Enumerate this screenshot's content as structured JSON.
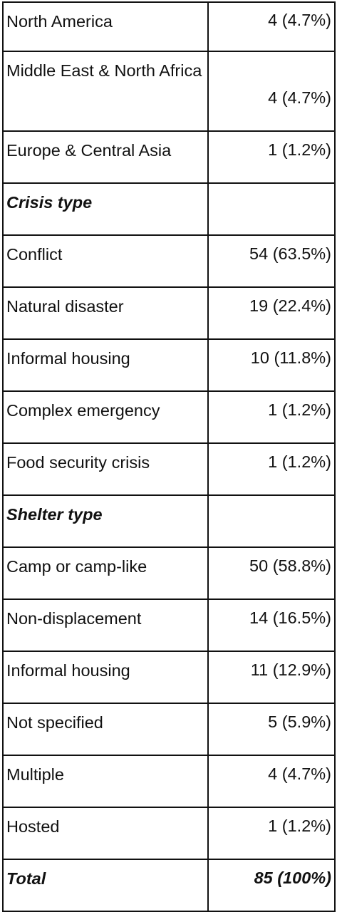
{
  "table": {
    "rows": [
      {
        "label": "North America",
        "value": "4 (4.7%)"
      },
      {
        "label": "Middle East & North Africa",
        "value": "4 (4.7%)"
      },
      {
        "label": "Europe & Central Asia",
        "value": "1 (1.2%)"
      },
      {
        "label": "Crisis type",
        "style": "section"
      },
      {
        "label": "Conflict",
        "value": "54 (63.5%)"
      },
      {
        "label": "Natural disaster",
        "value": "19 (22.4%)"
      },
      {
        "label": "Informal housing",
        "value": "10 (11.8%)"
      },
      {
        "label": "Complex emergency",
        "value": "1 (1.2%)"
      },
      {
        "label": "Food security crisis",
        "value": "1 (1.2%)"
      },
      {
        "label": "Shelter type",
        "style": "section"
      },
      {
        "label": "Camp or camp-like",
        "value": "50 (58.8%)"
      },
      {
        "label": "Non-displacement",
        "value": "14 (16.5%)"
      },
      {
        "label": "Informal housing",
        "value": "11 (12.9%)"
      },
      {
        "label": "Not specified",
        "value": "5 (5.9%)"
      },
      {
        "label": "Multiple",
        "value": "4 (4.7%)"
      },
      {
        "label": "Hosted",
        "value": "1 (1.2%)"
      },
      {
        "label": "Total",
        "value": "85 (100%)",
        "style": "total"
      }
    ]
  }
}
